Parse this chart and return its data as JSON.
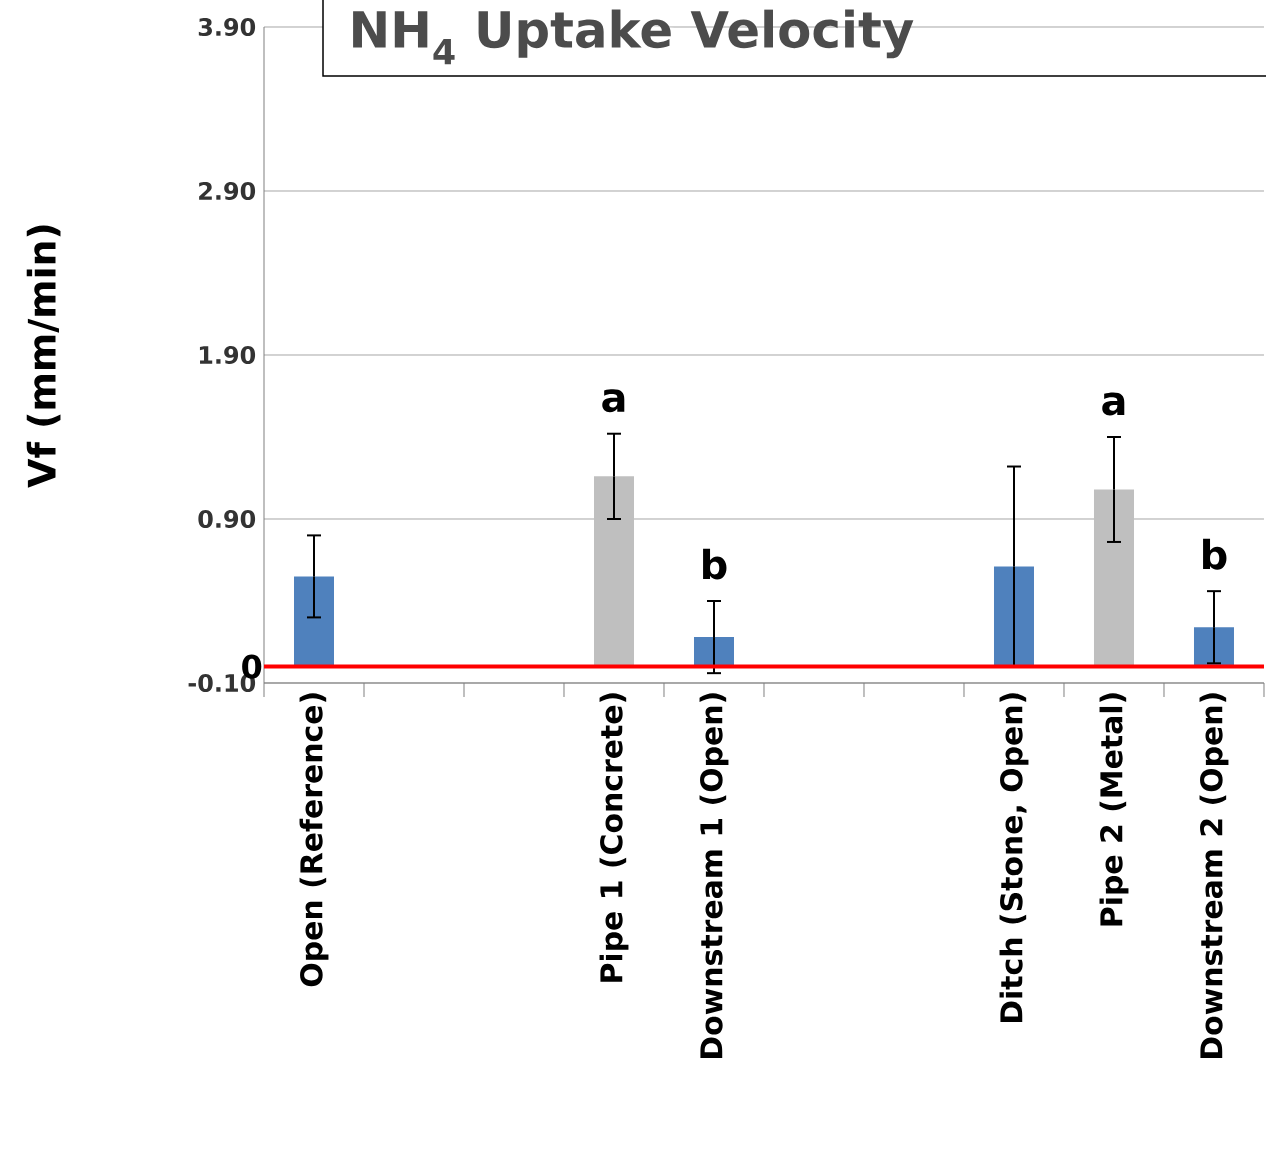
{
  "chart_data": {
    "type": "bar",
    "title": "NH$_{4}$ Uptake Velocity",
    "ylabel": "Vf (mm/min)",
    "categories": [
      "Open (Reference)",
      null,
      null,
      "Pipe 1 (Concrete)",
      "Downstream 1 (Open)",
      null,
      null,
      "Ditch (Stone, Open)",
      "Pipe 2 (Metal)",
      "Downstream 2 (Open)"
    ],
    "values": [
      0.55,
      null,
      null,
      1.16,
      0.18,
      null,
      null,
      0.61,
      1.08,
      0.24
    ],
    "errors": [
      0.25,
      null,
      null,
      0.26,
      0.22,
      null,
      null,
      0.61,
      0.32,
      0.22
    ],
    "colors": [
      "#4f81bd",
      null,
      null,
      "#bfbfbf",
      "#4f81bd",
      null,
      null,
      "#4f81bd",
      "#bfbfbf",
      "#4f81bd"
    ],
    "ylim": [
      -0.1,
      3.9
    ],
    "yticks": [
      {
        "value": -0.1,
        "label": "-0.10"
      },
      {
        "value": 0.9,
        "label": "0.90"
      },
      {
        "value": 1.9,
        "label": "1.90"
      },
      {
        "value": 2.9,
        "label": "2.90"
      },
      {
        "value": 3.9,
        "label": "3.90"
      }
    ],
    "grid": "y",
    "ref_lines": [
      {
        "axis": "y",
        "value": 0,
        "label": "0",
        "color": "#ff0000"
      }
    ],
    "annotations": [
      "a",
      "b",
      "a",
      "b"
    ]
  }
}
